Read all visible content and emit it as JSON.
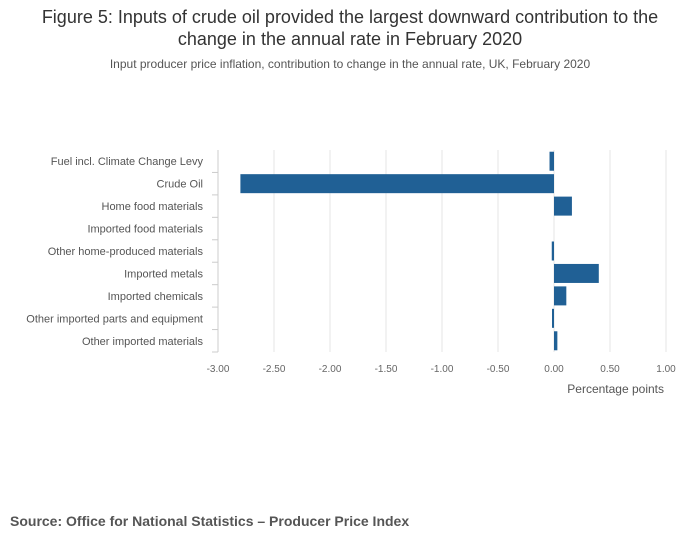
{
  "chart_data": {
    "type": "bar",
    "orientation": "horizontal",
    "title": "Figure 5: Inputs of crude oil provided the largest downward contribution to the change in the annual rate in February 2020",
    "subtitle": "Input producer price inflation, contribution to change in the annual rate, UK, February 2020",
    "categories": [
      "Fuel incl. Climate Change Levy",
      "Crude Oil",
      "Home food materials",
      "Imported food materials",
      "Other home-produced materials",
      "Imported metals",
      "Imported chemicals",
      "Other imported parts and equipment",
      "Other imported materials"
    ],
    "values": [
      -0.04,
      -2.8,
      0.16,
      0.0,
      -0.02,
      0.4,
      0.11,
      -0.01,
      0.03
    ],
    "xlabel": "Percentage points",
    "ylabel": "",
    "xlim": [
      -3.0,
      1.0
    ],
    "xticks": [
      -3.0,
      -2.5,
      -2.0,
      -1.5,
      -1.0,
      -0.5,
      0.0,
      0.5,
      1.0
    ],
    "xtick_labels": [
      "-3.00",
      "-2.50",
      "-2.00",
      "-1.50",
      "-1.00",
      "-0.50",
      "0.00",
      "0.50",
      "1.00"
    ],
    "grid": true,
    "bar_color": "#206095",
    "grid_color": "#e6e6e6",
    "axis_color": "#cccccc"
  },
  "source": "Source: Office for National Statistics – Producer Price Index"
}
